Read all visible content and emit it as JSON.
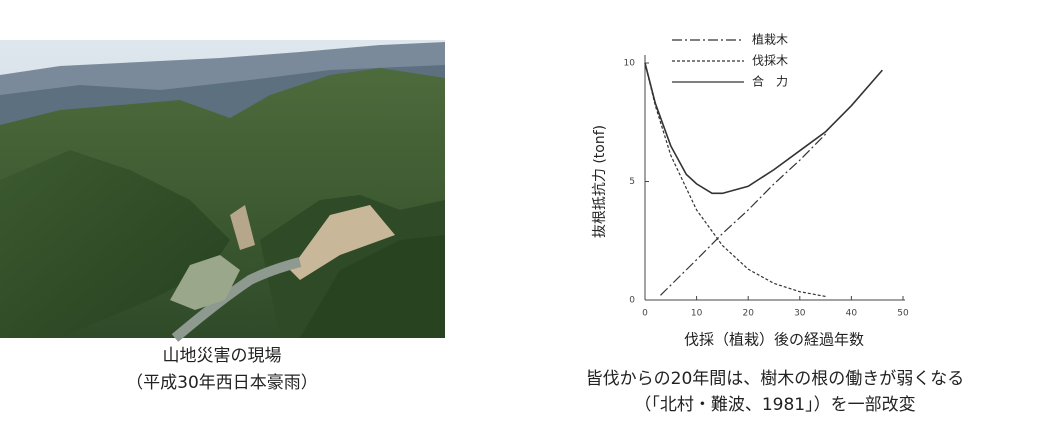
{
  "photo_caption": [
    "山地災害の現場",
    "（平成30年西日本豪雨）"
  ],
  "chart_caption": [
    "皆伐からの20年間は、樹木の根の働きが弱くなる",
    "（「北村・難波、1981」）を一部改変"
  ],
  "chart_data": {
    "type": "line",
    "x_label": "伐採（植栽）後の経過年数",
    "y_label": "抜根抵抗力 (tonf)",
    "xlim": [
      0,
      50
    ],
    "xticks": [
      0,
      10,
      20,
      30,
      40,
      50
    ],
    "ylim": [
      0,
      10
    ],
    "yticks": [
      0,
      5,
      10
    ],
    "series": [
      {
        "name": "植栽木",
        "color": "#333333",
        "dash": "dash-dot",
        "x": [
          3,
          10,
          15,
          20,
          25,
          30,
          35
        ],
        "values": [
          0.2,
          1.7,
          2.8,
          3.8,
          4.9,
          5.9,
          7.0
        ]
      },
      {
        "name": "伐採木",
        "color": "#333333",
        "dash": "dash",
        "x": [
          0,
          2,
          5,
          10,
          15,
          20,
          25,
          30,
          35
        ],
        "values": [
          10,
          8.2,
          6.1,
          3.8,
          2.3,
          1.3,
          0.7,
          0.35,
          0.15
        ]
      },
      {
        "name": "合　力",
        "color": "#333333",
        "dash": "solid",
        "x": [
          0,
          2,
          5,
          8,
          10,
          13,
          15,
          20,
          25,
          30,
          35,
          40,
          46
        ],
        "values": [
          10,
          8.3,
          6.5,
          5.3,
          4.9,
          4.5,
          4.5,
          4.8,
          5.5,
          6.3,
          7.1,
          8.2,
          9.7
        ]
      }
    ]
  }
}
